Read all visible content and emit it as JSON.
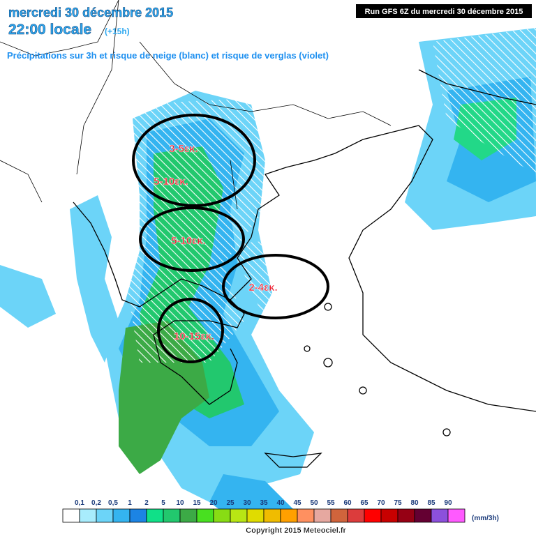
{
  "header": {
    "date": "mercredi 30 décembre 2015",
    "time": "22:00 locale",
    "offset": "(+15h)",
    "subtitle": "Précipitations sur 3h et risque de neige (blanc) et risque de verglas (violet)",
    "run": "Run GFS 6Z du mercredi 30 décembre 2015"
  },
  "annotations": [
    {
      "label": "3-5εκ."
    },
    {
      "label": "5-10εκ."
    },
    {
      "label": "5-10εκ."
    },
    {
      "label": "2-4εκ."
    },
    {
      "label": "10-15εκ."
    }
  ],
  "legend": {
    "labels": [
      "0,1",
      "0,2",
      "0,5",
      "1",
      "2",
      "5",
      "10",
      "15",
      "20",
      "25",
      "30",
      "35",
      "40",
      "45",
      "50",
      "55",
      "60",
      "65",
      "70",
      "75",
      "80",
      "85",
      "90"
    ],
    "colors": [
      "#ffffff",
      "#a8ecfc",
      "#6cd4f8",
      "#34b4f0",
      "#1c84e4",
      "#10e088",
      "#22c86e",
      "#3caa46",
      "#48e020",
      "#88dc14",
      "#b8e614",
      "#e0dc00",
      "#f0bc00",
      "#ffa000",
      "#ff9060",
      "#e6a8a0",
      "#d0643c",
      "#dc3c3c",
      "#ff0000",
      "#c80000",
      "#960014",
      "#640032",
      "#8c50dc",
      "#ff5aff"
    ],
    "unit": "(mm/3h)"
  },
  "footer": {
    "copyright": "Copyright 2015 Meteociel.fr"
  }
}
